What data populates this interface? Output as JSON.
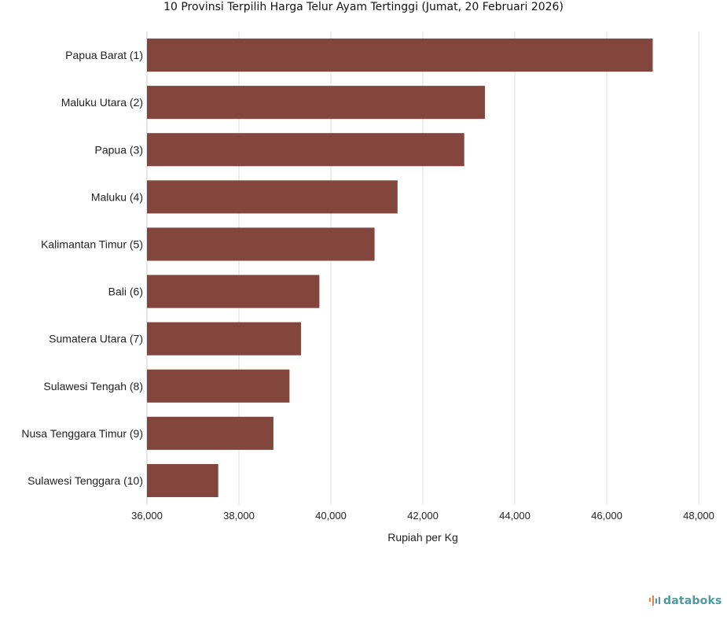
{
  "chart_data": {
    "type": "bar",
    "orientation": "horizontal",
    "title": "10 Provinsi Terpilih Harga Telur Ayam Tertinggi (Jumat, 20 Februari 2026)",
    "xlabel": "Rupiah per Kg",
    "ylabel": "",
    "categories": [
      "Papua Barat (1)",
      "Maluku Utara (2)",
      "Papua (3)",
      "Maluku (4)",
      "Kalimantan Timur (5)",
      "Bali (6)",
      "Sumatera Utara (7)",
      "Sulawesi Tengah (8)",
      "Nusa Tenggara Timur (9)",
      "Sulawesi Tenggara (10)"
    ],
    "values": [
      47000,
      43350,
      42900,
      41450,
      40950,
      39750,
      39350,
      39100,
      38750,
      37550
    ],
    "xlim": [
      36000,
      48000
    ],
    "xticks": [
      36000,
      38000,
      40000,
      42000,
      44000,
      46000,
      48000
    ],
    "xtick_labels": [
      "36,000",
      "38,000",
      "40,000",
      "42,000",
      "44,000",
      "46,000",
      "48,000"
    ],
    "grid": true,
    "legend": "none",
    "bar_color": "#83463c"
  },
  "branding": {
    "name": "databoks",
    "icon": "databoks-logo-icon",
    "color": "#4d9aa3",
    "accent": "#e8834a"
  }
}
